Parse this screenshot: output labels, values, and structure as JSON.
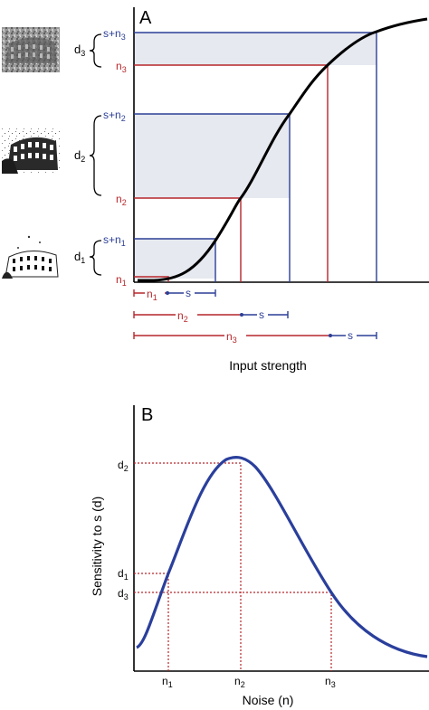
{
  "panel_a": {
    "letter": "A",
    "y_labels": {
      "s_n3": "s+n",
      "s_n3_sub": "3",
      "n3": "n",
      "n3_sub": "3",
      "s_n2": "s+n",
      "s_n2_sub": "2",
      "n2": "n",
      "n2_sub": "2",
      "s_n1": "s+n",
      "s_n1_sub": "1",
      "n1": "n",
      "n1_sub": "1"
    },
    "d_labels": {
      "d3": "d",
      "d3_sub": "3",
      "d2": "d",
      "d2_sub": "2",
      "d1": "d",
      "d1_sub": "1"
    },
    "bars": {
      "n1": "n",
      "n1_sub": "1",
      "s1": "s",
      "n2": "n",
      "n2_sub": "2",
      "s2": "s",
      "n3": "n",
      "n3_sub": "3",
      "s3": "s"
    },
    "xlabel": "Input strength",
    "colors": {
      "noise": "#b5262b",
      "signal": "#2c3f96",
      "curve": "#000000",
      "shade": "#e6e9ef"
    }
  },
  "panel_b": {
    "letter": "B",
    "ylabel": "Sensitivity to s (d)",
    "xlabel": "Noise (n)",
    "y_ticks": {
      "d2": "d",
      "d2_sub": "2",
      "d1": "d",
      "d1_sub": "1",
      "d3": "d",
      "d3_sub": "3"
    },
    "x_ticks": {
      "n1": "n",
      "n1_sub": "1",
      "n2": "n",
      "n2_sub": "2",
      "n3": "n",
      "n3_sub": "3"
    },
    "colors": {
      "curve": "#2a3f9c",
      "guides": "#b5262b"
    }
  }
}
